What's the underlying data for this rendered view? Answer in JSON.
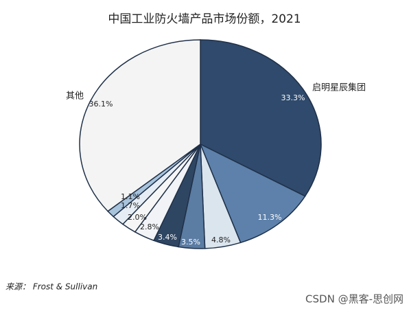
{
  "chart_data": {
    "type": "pie",
    "title": "中国工业防火墙产品市场份额，2021",
    "categories": [
      "启明星辰集团",
      null,
      null,
      null,
      null,
      null,
      null,
      null,
      null,
      "其他"
    ],
    "values": [
      33.3,
      11.3,
      4.8,
      3.5,
      3.4,
      2.8,
      2.0,
      1.7,
      1.1,
      36.1
    ],
    "value_labels": [
      "33.3%",
      "11.3%",
      "4.8%",
      "3.5%",
      "3.4%",
      "2.8%",
      "2.0%",
      "1.7%",
      "1.1%",
      "36.1%"
    ],
    "colors": [
      "#2f4a6c",
      "#5d81aa",
      "#dbe5ee",
      "#5b7ca3",
      "#2f4662",
      "#f1f3f6",
      "#f6f6f6",
      "#e6edf4",
      "#a8c3dc",
      "#f4f4f4"
    ],
    "source": "来源： Frost & Sullivan",
    "watermark": "CSDN @黑客-思创网"
  }
}
